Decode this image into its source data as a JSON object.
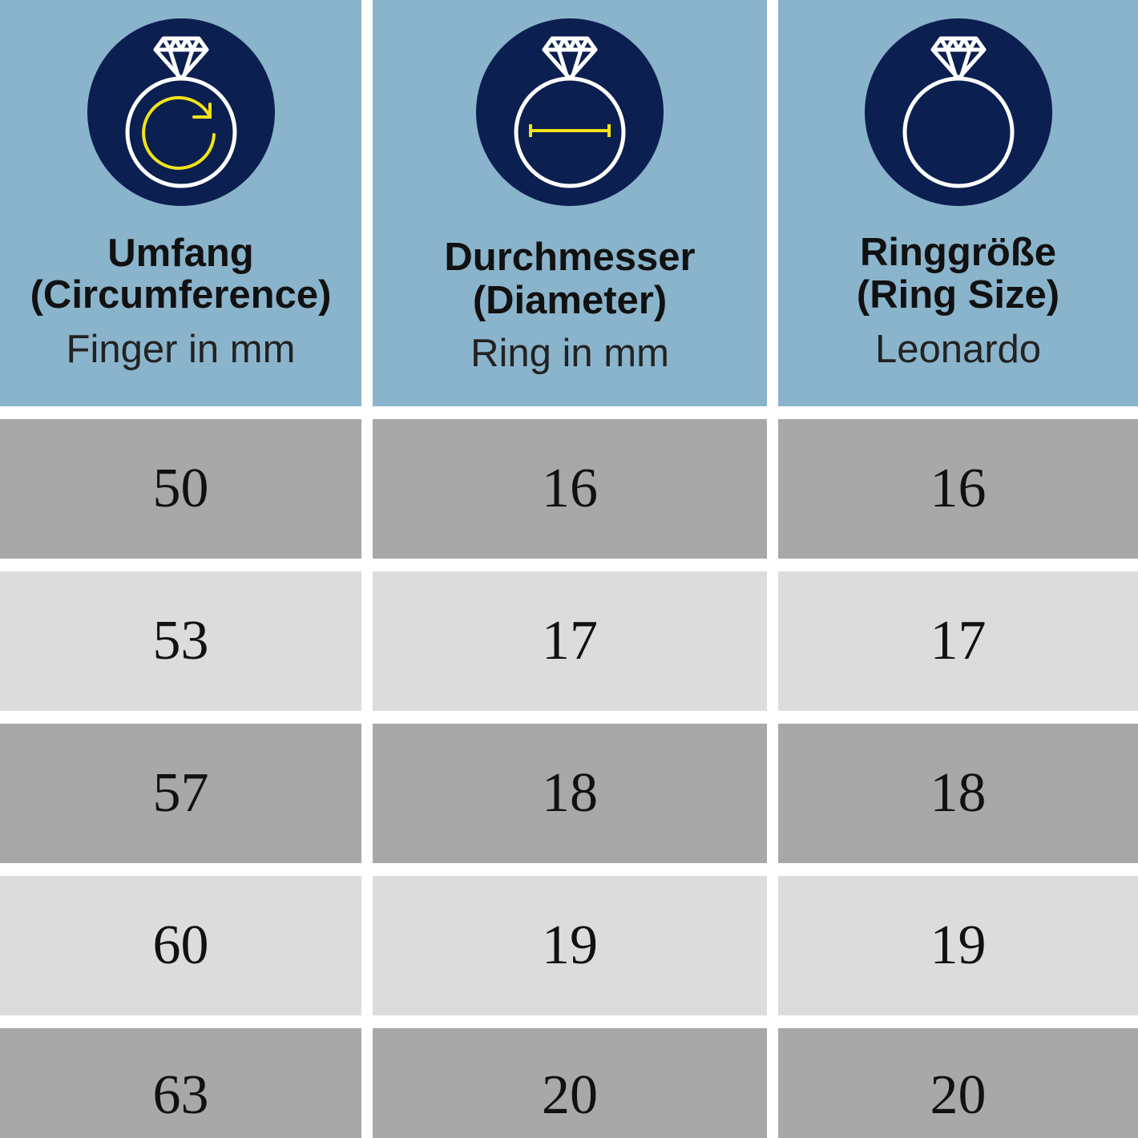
{
  "colors": {
    "header": "#8ab4cb",
    "icon_circle": "#0b2050",
    "accent": "#f2e21a",
    "row_dark": "#a8a8a8",
    "row_light": "#dcdcdc"
  },
  "columns": [
    {
      "title": "Umfang",
      "subtitle": "(Circumference)",
      "unit": "Finger in mm",
      "icon": "ring-circumference-icon"
    },
    {
      "title": "Durchmesser",
      "subtitle": "(Diameter)",
      "unit": "Ring in mm",
      "icon": "ring-diameter-icon"
    },
    {
      "title": "Ringgröße",
      "subtitle": "(Ring Size)",
      "unit": "Leonardo",
      "icon": "ring-size-icon"
    }
  ],
  "rows": [
    [
      "50",
      "16",
      "16"
    ],
    [
      "53",
      "17",
      "17"
    ],
    [
      "57",
      "18",
      "18"
    ],
    [
      "60",
      "19",
      "19"
    ],
    [
      "63",
      "20",
      "20"
    ]
  ]
}
